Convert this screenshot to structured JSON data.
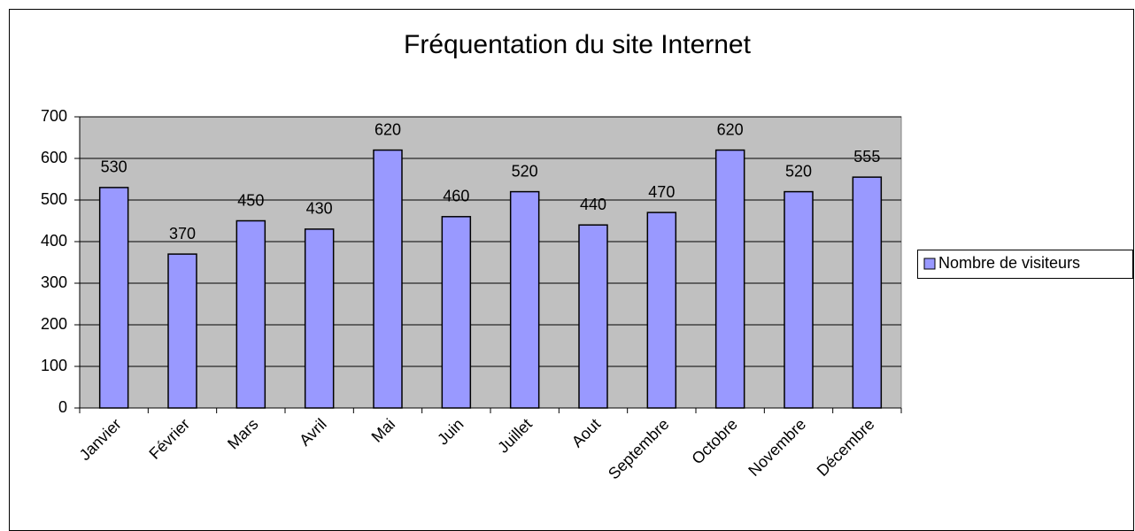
{
  "chart_data": {
    "type": "bar",
    "title": "Fréquentation du site Internet",
    "categories": [
      "Janvier",
      "Février",
      "Mars",
      "Avril",
      "Mai",
      "Juin",
      "Juillet",
      "Aout",
      "Septembre",
      "Octobre",
      "Novembre",
      "Décembre"
    ],
    "series": [
      {
        "name": "Nombre de visiteurs",
        "color": "#9999ff",
        "values": [
          530,
          370,
          450,
          430,
          620,
          460,
          520,
          440,
          470,
          620,
          520,
          555
        ]
      }
    ],
    "ylim": [
      0,
      700
    ],
    "yticks": [
      0,
      100,
      200,
      300,
      400,
      500,
      600,
      700
    ],
    "grid": true,
    "legend": "right",
    "show_values": true
  }
}
